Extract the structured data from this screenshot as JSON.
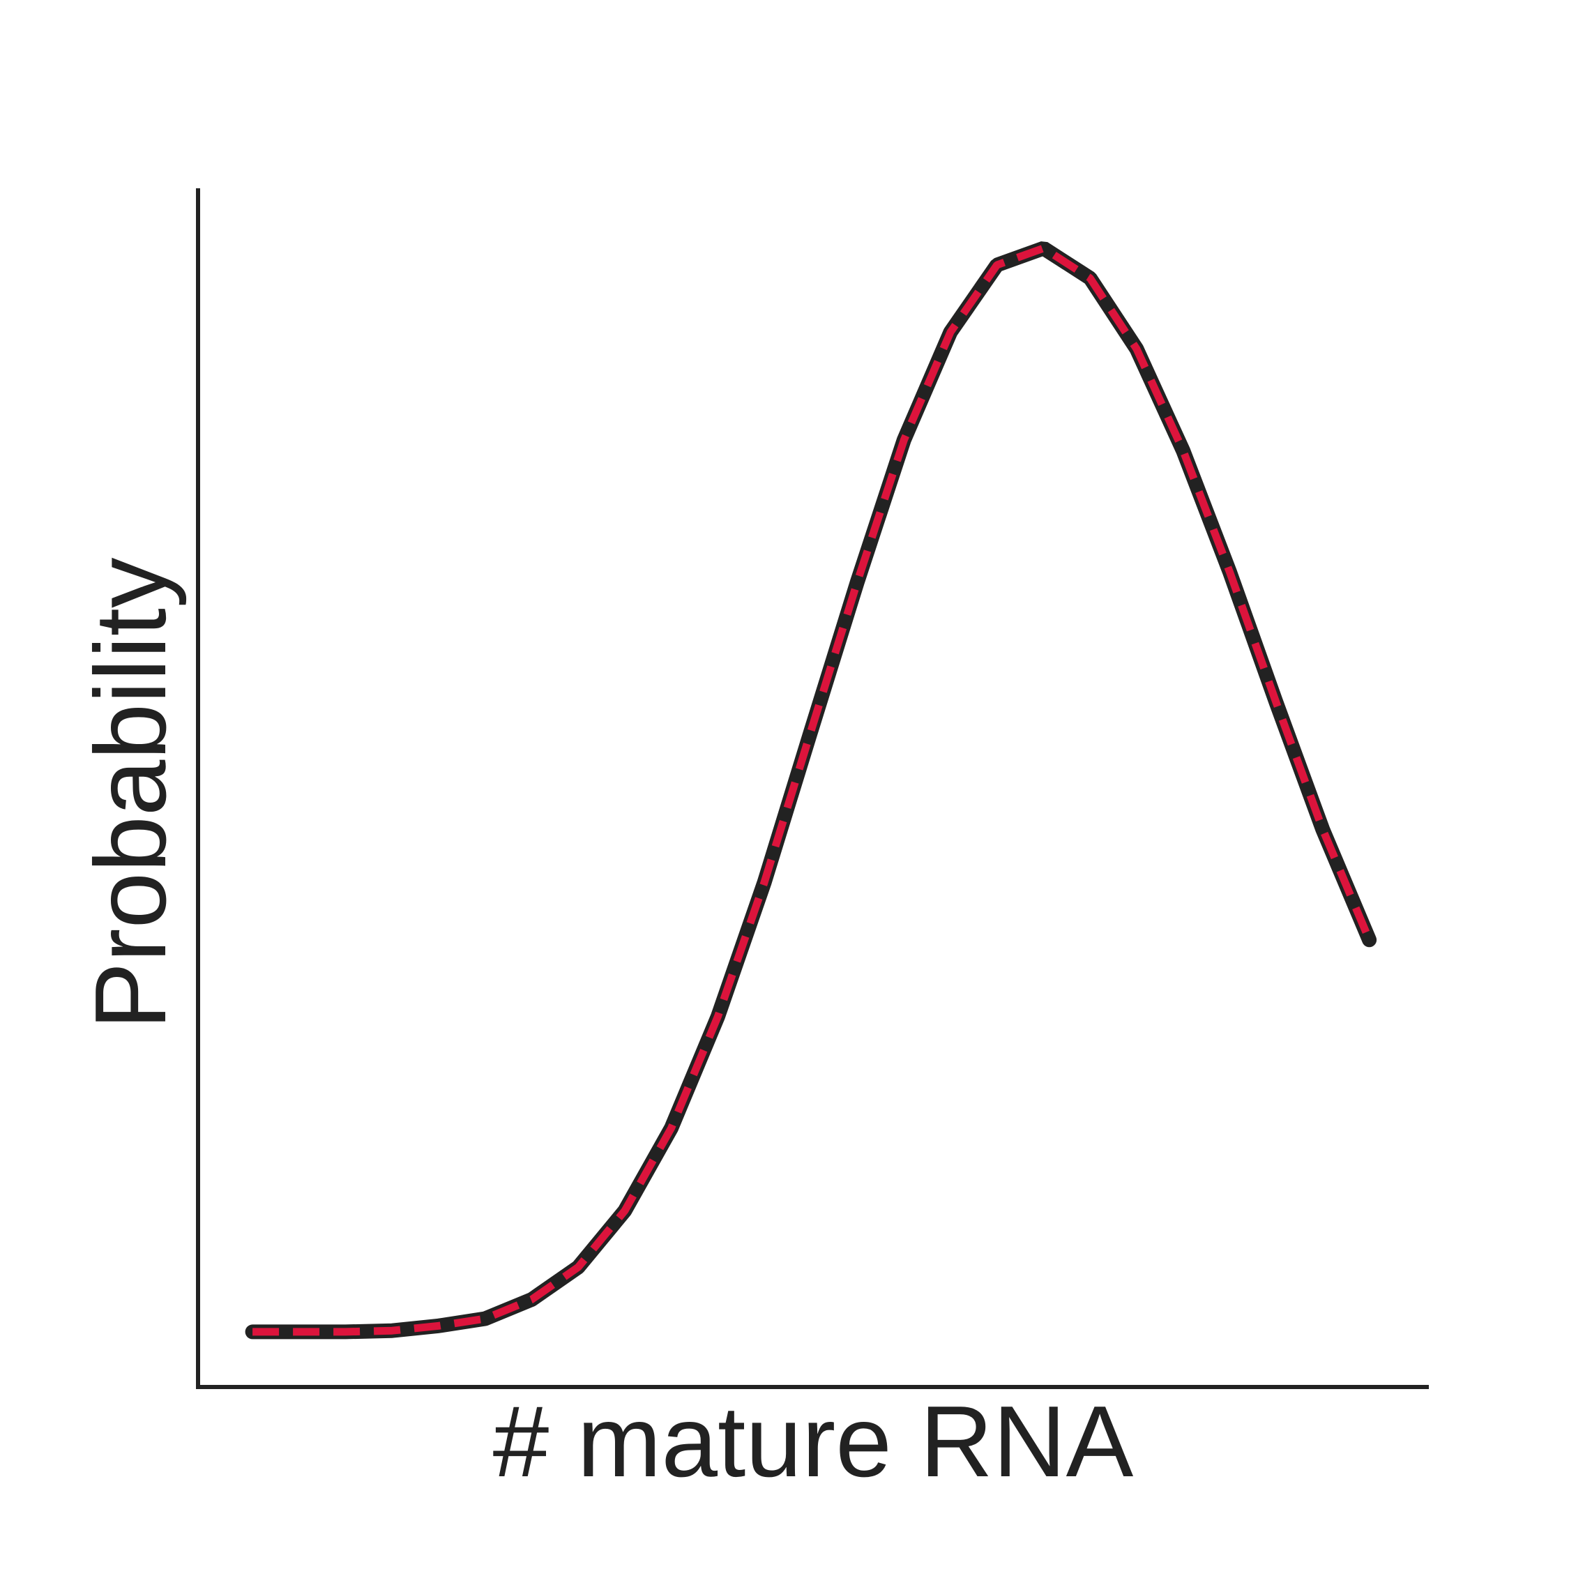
{
  "chart_data": {
    "type": "line",
    "xlabel": "# mature RNA",
    "ylabel": "Probability",
    "x": [
      0,
      1,
      2,
      3,
      4,
      5,
      6,
      7,
      8,
      9,
      10,
      11,
      12,
      13,
      14,
      15,
      16,
      17,
      18,
      19,
      20,
      21,
      22,
      23,
      24
    ],
    "series": [
      {
        "color": "#222222",
        "style": "solid",
        "values": [
          0.046,
          0.046,
          0.046,
          0.047,
          0.051,
          0.057,
          0.073,
          0.1,
          0.147,
          0.216,
          0.309,
          0.421,
          0.547,
          0.672,
          0.79,
          0.88,
          0.936,
          0.95,
          0.925,
          0.866,
          0.781,
          0.68,
          0.571,
          0.465,
          0.373
        ]
      },
      {
        "color": "#dc143c",
        "style": "dashed",
        "values": [
          0.046,
          0.046,
          0.046,
          0.047,
          0.051,
          0.057,
          0.073,
          0.1,
          0.147,
          0.216,
          0.309,
          0.421,
          0.547,
          0.672,
          0.79,
          0.88,
          0.936,
          0.95,
          0.925,
          0.866,
          0.781,
          0.68,
          0.571,
          0.465,
          0.373
        ]
      }
    ],
    "xlim": [
      -1.17,
      25.28
    ],
    "ylim": [
      0,
      1
    ]
  }
}
